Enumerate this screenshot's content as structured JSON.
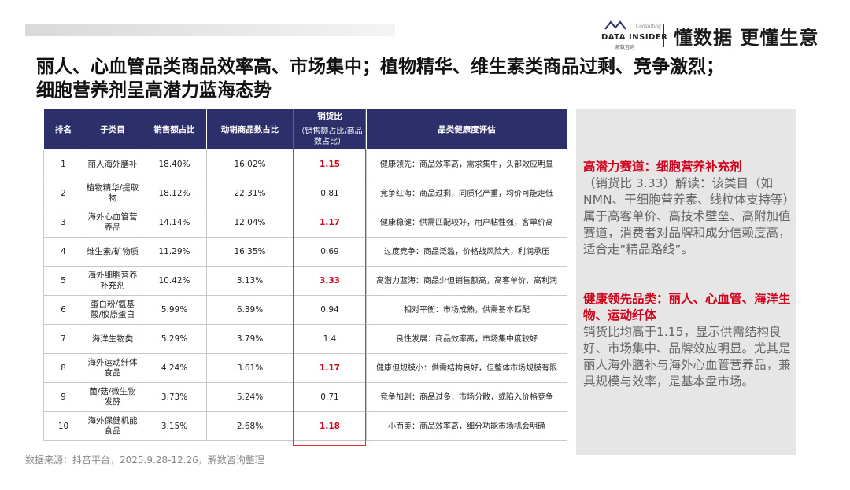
{
  "header": {
    "logo_text": "DATA INSIDER",
    "logo_subtext": "Consulting",
    "logo_cn": "解数咨询",
    "slogan": "懂数据 更懂生意"
  },
  "title": [
    "丽人、心血管品类商品效率高、市场集中；植物精华、维生素类商品过剩、竞争激烈；",
    "细胞营养剂呈高潜力蓝海态势"
  ],
  "table": {
    "columns": [
      "排名",
      "子类目",
      "销售额占比",
      "动销商品数占比",
      "销货比",
      "品类健康度评估"
    ],
    "column_note": "（销售额占比/商品数占比）",
    "rows": [
      [
        "1",
        "丽人海外膳补",
        "18.40%",
        "16.02%",
        "1.15",
        "健康领先：商品效率高，需求集中，头部效应明显"
      ],
      [
        "2",
        "植物精华/提取物",
        "18.12%",
        "22.31%",
        "0.81",
        "竞争红海：商品过剩，同质化严重，均价可能走低"
      ],
      [
        "3",
        "海外心血管营养品",
        "14.14%",
        "12.04%",
        "1.17",
        "健康稳健：供需匹配较好，用户粘性强，客单价高"
      ],
      [
        "4",
        "维生素/矿物质",
        "11.29%",
        "16.35%",
        "0.69",
        "过度竞争：商品泛滥，价格战风险大，利润承压"
      ],
      [
        "5",
        "海外细胞营养补充剂",
        "10.42%",
        "3.13%",
        "3.33",
        "高潜力蓝海：商品少但销售额高，高客单价、高利润"
      ],
      [
        "6",
        "蛋白粉/氨基酸/胶原蛋白",
        "5.99%",
        "6.39%",
        "0.94",
        "相对平衡：市场成熟，供需基本匹配"
      ],
      [
        "7",
        "海洋生物类",
        "5.29%",
        "3.79%",
        "1.4",
        "良性发展：商品效率高，市场集中度较好"
      ],
      [
        "8",
        "海外运动纤体食品",
        "4.24%",
        "3.61%",
        "1.17",
        "健康但规模小：供需结构良好，但整体市场规模有限"
      ],
      [
        "9",
        "菌/菇/微生物发酵",
        "3.73%",
        "5.24%",
        "0.71",
        "竞争加剧：商品过多，市场分散，或陷入价格竞争"
      ],
      [
        "10",
        "海外保健机能食品",
        "3.15%",
        "2.68%",
        "1.18",
        "小而美：商品效率高，细分功能市场机会明确"
      ]
    ]
  },
  "panel": {
    "sections": [
      {
        "heading": "高潜力赛道：细胞营养补充剂",
        "body": "（销货比 3.33）解读：该类目（如NMN、干细胞营养素、线粒体支持等）属于高客单价、高技术壁垒、高附加值赛道，消费者对品牌和成分信赖度高，适合走“精品路线”。"
      },
      {
        "heading": "健康领先品类：丽人、心血管、海洋生物、运动纤体",
        "body": "销货比均高于1.15，显示供需结构良好、市场集中、品牌效应明显。尤其是丽人海外膳补与海外心血管营养品，兼具规模与效率，是基本盘市场。"
      }
    ]
  },
  "footer": {
    "source": "数据来源：抖音平台，2025.9.28-12.26，解数咨询整理"
  }
}
